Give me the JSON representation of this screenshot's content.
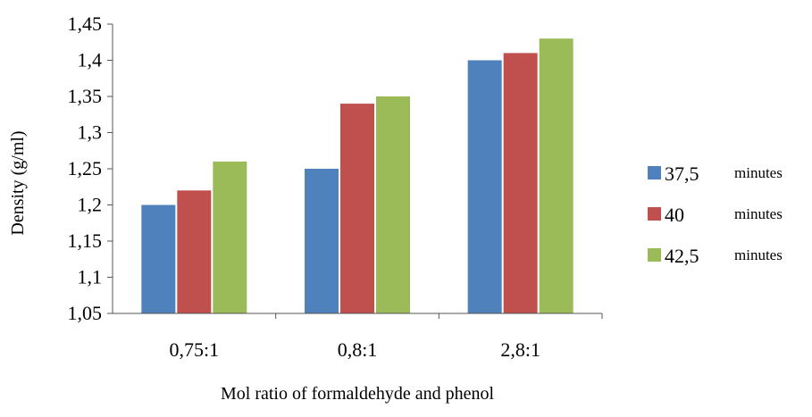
{
  "chart_data": {
    "type": "bar",
    "categories": [
      "0,75:1",
      "0,8:1",
      "2,8:1"
    ],
    "series": [
      {
        "name": "37,5",
        "unit": "minutes",
        "color": "#4f81bd",
        "values": [
          1.2,
          1.25,
          1.4
        ]
      },
      {
        "name": "40",
        "unit": "minutes",
        "color": "#c0504d",
        "values": [
          1.22,
          1.34,
          1.41
        ]
      },
      {
        "name": "42,5",
        "unit": "minutes",
        "color": "#9bbb59",
        "values": [
          1.26,
          1.35,
          1.43
        ]
      }
    ],
    "ylim": [
      1.05,
      1.45
    ],
    "yticks": [
      1.05,
      1.1,
      1.15,
      1.2,
      1.25,
      1.3,
      1.35,
      1.4,
      1.45
    ],
    "ytick_labels": [
      "1,05",
      "1,1",
      "1,15",
      "1,2",
      "1,25",
      "1,3",
      "1,35",
      "1,4",
      "1,45"
    ],
    "xlabel": "Mol ratio of formaldehyde and phenol",
    "ylabel": "Density (g/ml)",
    "grid": false,
    "legend_position": "right"
  }
}
